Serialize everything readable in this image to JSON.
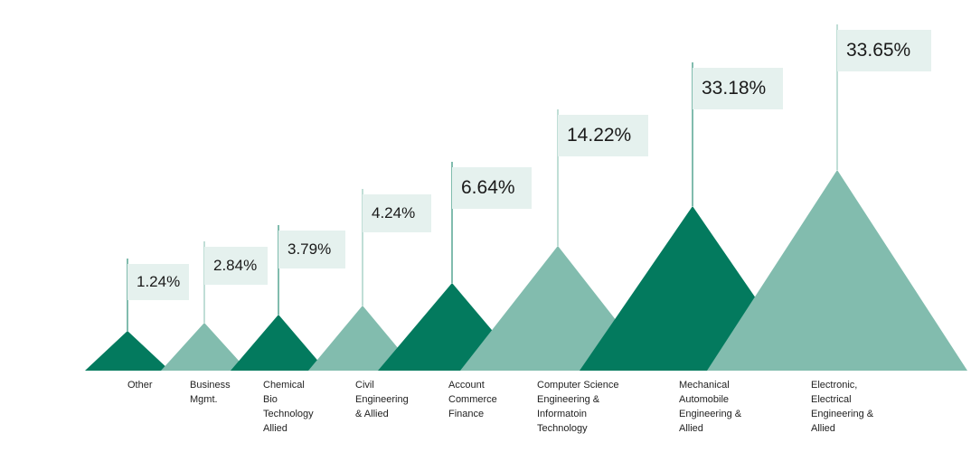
{
  "chart_data": {
    "type": "area",
    "title": "",
    "categories": [
      "Other",
      "Business\nMgmt.",
      "Chemical\nBio\nTechnology\nAllied",
      "Civil\nEngineering\n& Allied",
      "Account\nCommerce\nFinance",
      "Computer Science\nEngineering  &\nInformatoin\nTechnology",
      "Mechanical\nAutomobile\nEngineering &\nAllied",
      "Electronic,\nElectrical\nEngineering &\nAllied"
    ],
    "values": [
      1.24,
      2.84,
      3.79,
      4.24,
      6.64,
      14.22,
      33.18,
      33.65
    ],
    "value_labels": [
      "1.24%",
      "2.84%",
      "3.79%",
      "4.24%",
      "6.64%",
      "14.22%",
      "33.18%",
      "33.65%"
    ],
    "unit": "%",
    "legend": "none",
    "grid": false
  },
  "colors": {
    "dark": "#037a5e",
    "light": "#82bcae",
    "label_bg": "#e5f1ee"
  }
}
